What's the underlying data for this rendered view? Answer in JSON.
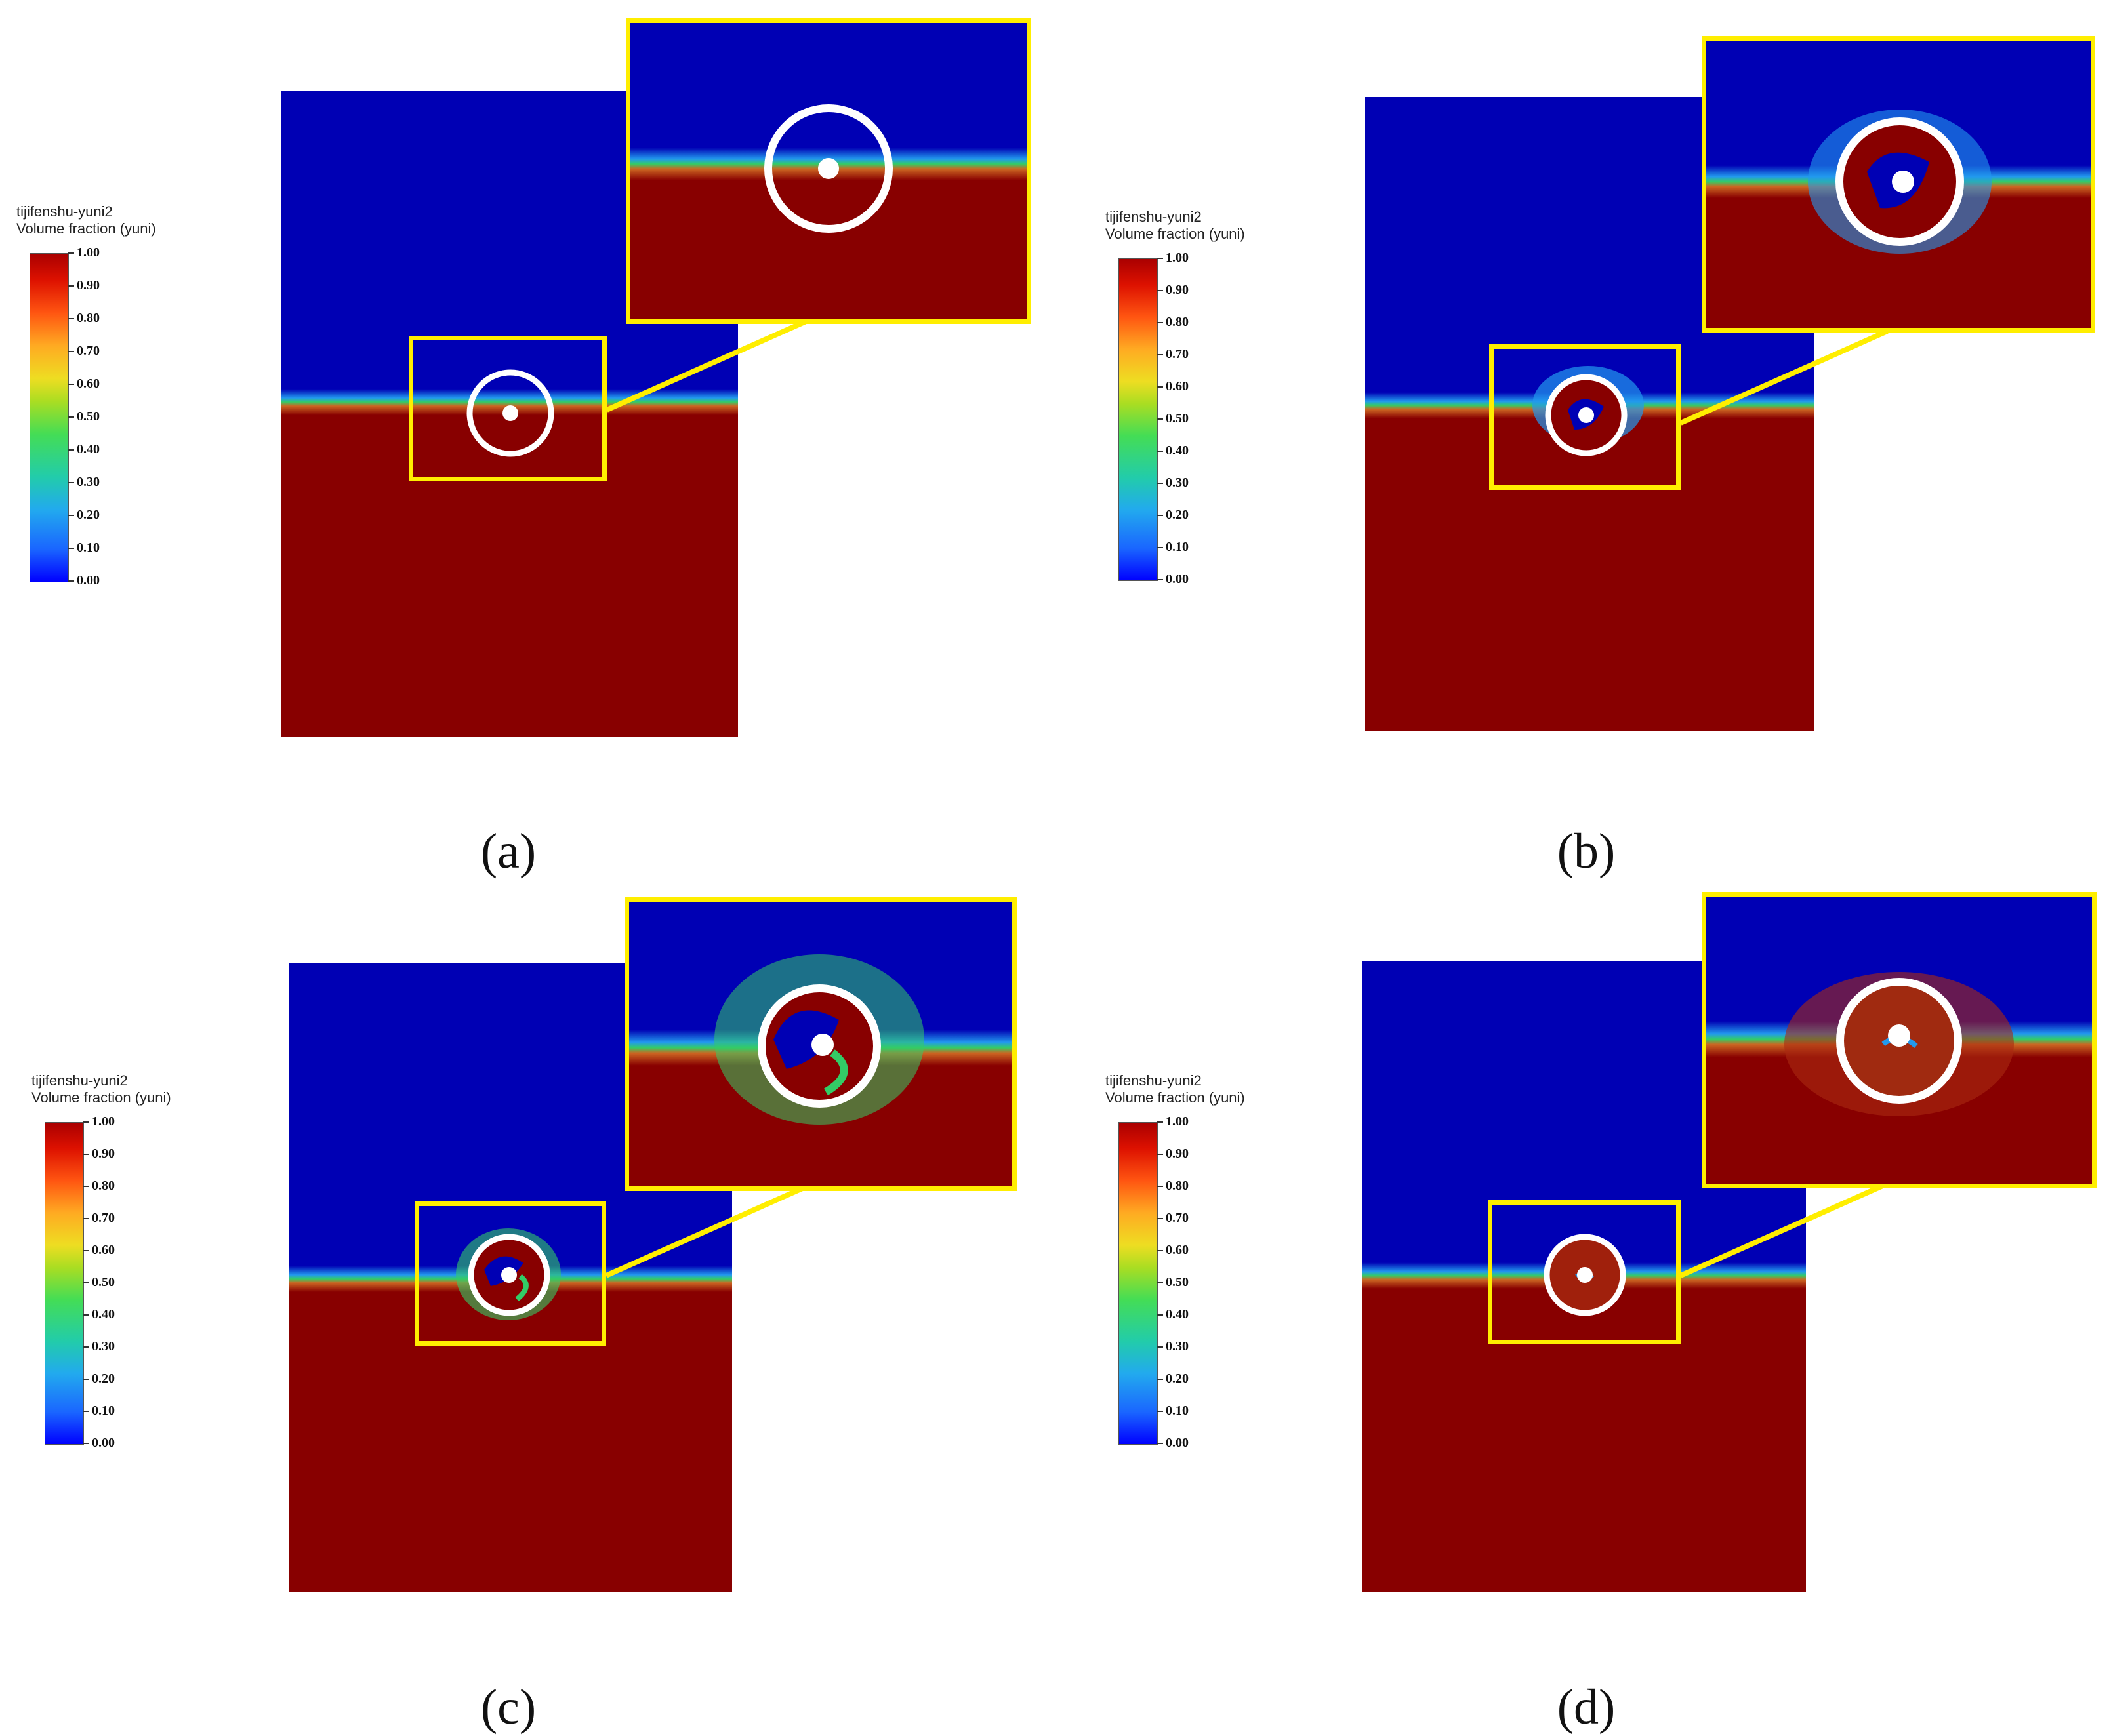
{
  "colorbar": {
    "title_line1": "tijifenshu-yuni2",
    "title_line2": "Volume fraction (yuni)",
    "ticks": [
      "1.00",
      "0.90",
      "0.80",
      "0.70",
      "0.60",
      "0.50",
      "0.40",
      "0.30",
      "0.20",
      "0.10",
      "0.00"
    ],
    "colormap": "jet-like (blue to red)"
  },
  "panels": [
    {
      "id": "a",
      "caption": "(a)"
    },
    {
      "id": "b",
      "caption": "(b)"
    },
    {
      "id": "c",
      "caption": "(c)"
    },
    {
      "id": "d",
      "caption": "(d)"
    }
  ],
  "colors": {
    "water": "#0000b4",
    "liquid": "#880000",
    "interface": "#33cc66",
    "highlight": "#ffee00",
    "ring": "#ffffff"
  }
}
